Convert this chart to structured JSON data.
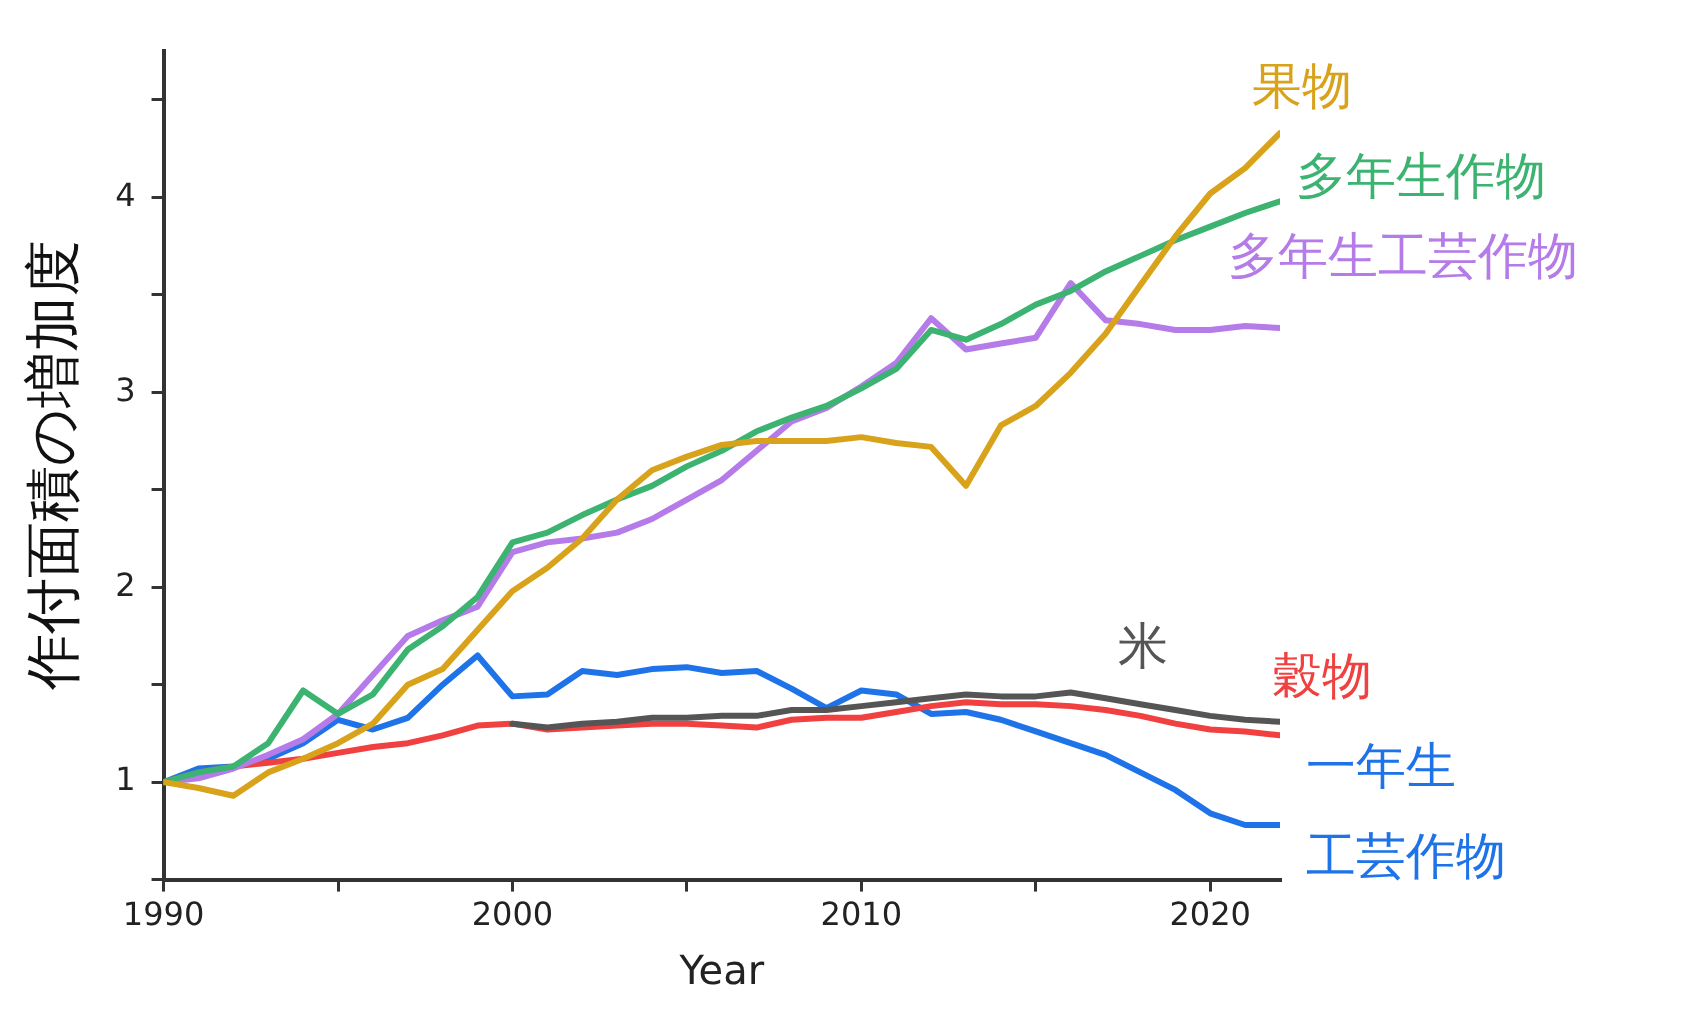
{
  "chart_data": {
    "type": "line",
    "xlabel": "Year",
    "ylabel": "作付面積の増加度",
    "x": [
      1990,
      1991,
      1992,
      1993,
      1994,
      1995,
      1996,
      1997,
      1998,
      1999,
      2000,
      2001,
      2002,
      2003,
      2004,
      2005,
      2006,
      2007,
      2008,
      2009,
      2010,
      2011,
      2012,
      2013,
      2014,
      2015,
      2016,
      2017,
      2018,
      2019,
      2020,
      2021,
      2022
    ],
    "series": [
      {
        "name": "果物",
        "color": "#d9a21b",
        "values": [
          1.0,
          0.97,
          0.93,
          1.05,
          1.12,
          1.2,
          1.3,
          1.5,
          1.58,
          1.78,
          1.98,
          2.1,
          2.25,
          2.45,
          2.6,
          2.67,
          2.73,
          2.75,
          2.75,
          2.75,
          2.77,
          2.74,
          2.72,
          2.52,
          2.83,
          2.93,
          3.1,
          3.3,
          3.55,
          3.8,
          4.02,
          4.15,
          4.33
        ]
      },
      {
        "name": "多年生作物",
        "color": "#3cb371",
        "values": [
          1.0,
          1.05,
          1.08,
          1.2,
          1.47,
          1.35,
          1.45,
          1.68,
          1.8,
          1.95,
          2.23,
          2.28,
          2.37,
          2.45,
          2.52,
          2.62,
          2.7,
          2.8,
          2.87,
          2.93,
          3.02,
          3.12,
          3.32,
          3.27,
          3.35,
          3.45,
          3.52,
          3.62,
          3.7,
          3.78,
          3.85,
          3.92,
          3.98
        ]
      },
      {
        "name": "多年生工芸作物",
        "color": "#b57be8",
        "values": [
          1.0,
          1.02,
          1.07,
          1.14,
          1.22,
          1.35,
          1.55,
          1.75,
          1.83,
          1.9,
          2.18,
          2.23,
          2.25,
          2.28,
          2.35,
          2.45,
          2.55,
          2.7,
          2.85,
          2.92,
          3.03,
          3.15,
          3.38,
          3.22,
          3.25,
          3.28,
          3.56,
          3.37,
          3.35,
          3.32,
          3.32,
          3.34,
          3.33
        ]
      },
      {
        "name": "米",
        "color": "#555555",
        "values": [
          null,
          null,
          null,
          null,
          null,
          null,
          null,
          null,
          null,
          null,
          1.3,
          1.28,
          1.3,
          1.31,
          1.33,
          1.33,
          1.34,
          1.34,
          1.37,
          1.37,
          1.39,
          1.41,
          1.43,
          1.45,
          1.44,
          1.44,
          1.46,
          1.43,
          1.4,
          1.37,
          1.34,
          1.32,
          1.31
        ]
      },
      {
        "name": "穀物",
        "color": "#f04040",
        "values": [
          1.0,
          1.05,
          1.08,
          1.1,
          1.12,
          1.15,
          1.18,
          1.2,
          1.24,
          1.29,
          1.3,
          1.27,
          1.28,
          1.29,
          1.3,
          1.3,
          1.29,
          1.28,
          1.32,
          1.33,
          1.33,
          1.36,
          1.39,
          1.41,
          1.4,
          1.4,
          1.39,
          1.37,
          1.34,
          1.3,
          1.27,
          1.26,
          1.24
        ]
      },
      {
        "name": "一年生工芸作物",
        "color": "#1f73e8",
        "values": [
          1.0,
          1.07,
          1.08,
          1.12,
          1.2,
          1.32,
          1.27,
          1.33,
          1.5,
          1.65,
          1.44,
          1.45,
          1.57,
          1.55,
          1.58,
          1.59,
          1.56,
          1.57,
          1.48,
          1.38,
          1.47,
          1.45,
          1.35,
          1.36,
          1.32,
          1.26,
          1.2,
          1.14,
          1.05,
          0.96,
          0.84,
          0.78,
          0.78
        ]
      }
    ],
    "xlim": [
      1990,
      2022
    ],
    "xticks": [
      1990,
      {
        "value": 1995,
        "label": null
      },
      2000,
      {
        "value": 2005,
        "label": null
      },
      2010,
      {
        "value": 2015,
        "label": null
      },
      2020
    ],
    "ylim": [
      0.5,
      4.75
    ],
    "yticks": [
      {
        "value": 0.5,
        "label": null
      },
      1,
      {
        "value": 1.5,
        "label": null
      },
      2,
      {
        "value": 2.5,
        "label": null
      },
      3,
      {
        "value": 3.5,
        "label": null
      },
      4,
      {
        "value": 4.5,
        "label": null
      }
    ],
    "grid": false,
    "legend": false,
    "marker": "none",
    "line_style": "solid"
  }
}
